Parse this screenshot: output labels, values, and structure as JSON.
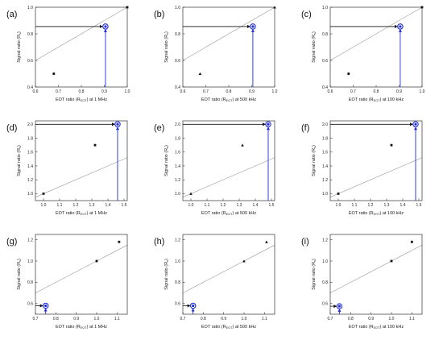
{
  "colors": {
    "highlight": "#1f2bd6",
    "arrow": "#111111",
    "points": "#111111",
    "diagonal": "#9a9a9a",
    "axes": "#333333"
  },
  "chart_data": [
    {
      "type": "scatter",
      "panel_label": "(a)",
      "marker": "square",
      "xlabel": {
        "pre": "EOT ratio (R",
        "sub": "EOT",
        "post": ") at 1 MHz"
      },
      "ylabel": {
        "pre": "Signal ratio (R",
        "sub": "s",
        "post": ")"
      },
      "xlim": [
        0.6,
        1.0
      ],
      "ylim": [
        0.4,
        1.0
      ],
      "xticks": [
        "0.6",
        "0.7",
        "0.8",
        "0.9",
        "1.0"
      ],
      "yticks": [
        "0.4",
        "0.6",
        "0.8",
        "1.0"
      ],
      "points": [
        [
          0.68,
          0.5
        ],
        [
          1.0,
          1.0
        ]
      ],
      "highlight": [
        0.905,
        0.855
      ],
      "diagonal": true
    },
    {
      "type": "scatter",
      "panel_label": "(b)",
      "marker": "triangle",
      "xlabel": {
        "pre": "EOT ratio (R",
        "sub": "EOT",
        "post": ") at 500 kHz"
      },
      "ylabel": {
        "pre": "Signal ratio (R",
        "sub": "s",
        "post": ")"
      },
      "xlim": [
        0.6,
        1.0
      ],
      "ylim": [
        0.4,
        1.0
      ],
      "xticks": [
        "0.6",
        "0.7",
        "0.8",
        "0.9",
        "1.0"
      ],
      "yticks": [
        "0.4",
        "0.6",
        "0.8",
        "1.0"
      ],
      "points": [
        [
          0.675,
          0.5
        ],
        [
          1.0,
          1.0
        ]
      ],
      "highlight": [
        0.905,
        0.855
      ],
      "diagonal": true
    },
    {
      "type": "scatter",
      "panel_label": "(c)",
      "marker": "square",
      "xlabel": {
        "pre": "EOT ratio (R",
        "sub": "EOT",
        "post": ") at 100 kHz"
      },
      "ylabel": {
        "pre": "Signal ratio (R",
        "sub": "s",
        "post": ")"
      },
      "xlim": [
        0.6,
        1.0
      ],
      "ylim": [
        0.4,
        1.0
      ],
      "xticks": [
        "0.6",
        "0.7",
        "0.8",
        "0.9",
        "1.0"
      ],
      "yticks": [
        "0.4",
        "0.6",
        "0.8",
        "1.0"
      ],
      "points": [
        [
          0.68,
          0.5
        ],
        [
          1.0,
          1.0
        ]
      ],
      "highlight": [
        0.905,
        0.855
      ],
      "diagonal": true
    },
    {
      "type": "scatter",
      "panel_label": "(d)",
      "marker": "square",
      "xlabel": {
        "pre": "EOT ratio (R",
        "sub": "EOT",
        "post": ") at 1 MHz"
      },
      "ylabel": {
        "pre": "Signal ratio (R",
        "sub": "s",
        "post": ")"
      },
      "xlim": [
        0.95,
        1.52
      ],
      "ylim": [
        0.9,
        2.05
      ],
      "xticks": [
        "1.0",
        "1.1",
        "1.2",
        "1.3",
        "1.4",
        "1.5"
      ],
      "yticks": [
        "1.0",
        "1.2",
        "1.4",
        "1.6",
        "1.8",
        "2.0"
      ],
      "points": [
        [
          1.0,
          1.0
        ],
        [
          1.32,
          1.7
        ]
      ],
      "highlight": [
        1.46,
        2.0
      ],
      "diagonal": true
    },
    {
      "type": "scatter",
      "panel_label": "(e)",
      "marker": "triangle",
      "xlabel": {
        "pre": "EOT ratio (R",
        "sub": "EOT",
        "post": ") at 500 kHz"
      },
      "ylabel": {
        "pre": "Signal ratio (R",
        "sub": "s",
        "post": ")"
      },
      "xlim": [
        0.95,
        1.52
      ],
      "ylim": [
        0.9,
        2.05
      ],
      "xticks": [
        "1.0",
        "1.1",
        "1.2",
        "1.3",
        "1.4",
        "1.5"
      ],
      "yticks": [
        "1.0",
        "1.2",
        "1.4",
        "1.6",
        "1.8",
        "2.0"
      ],
      "points": [
        [
          1.0,
          1.0
        ],
        [
          1.32,
          1.7
        ]
      ],
      "highlight": [
        1.48,
        2.0
      ],
      "diagonal": true
    },
    {
      "type": "scatter",
      "panel_label": "(f)",
      "marker": "square",
      "xlabel": {
        "pre": "EOT ratio (R",
        "sub": "EOT",
        "post": ") at 100 kHz"
      },
      "ylabel": {
        "pre": "Signal ratio (R",
        "sub": "s",
        "post": ")"
      },
      "xlim": [
        0.95,
        1.52
      ],
      "ylim": [
        0.9,
        2.05
      ],
      "xticks": [
        "1.0",
        "1.1",
        "1.2",
        "1.3",
        "1.4",
        "1.5"
      ],
      "yticks": [
        "1.0",
        "1.2",
        "1.4",
        "1.6",
        "1.8",
        "2.0"
      ],
      "points": [
        [
          1.0,
          1.0
        ],
        [
          1.33,
          1.7
        ]
      ],
      "highlight": [
        1.48,
        2.0
      ],
      "diagonal": true
    },
    {
      "type": "scatter",
      "panel_label": "(g)",
      "marker": "square",
      "xlabel": {
        "pre": "EOT ratio (R",
        "sub": "EOT",
        "post": ") at 1 MHz"
      },
      "ylabel": {
        "pre": "Signal ratio (R",
        "sub": "s",
        "post": ")"
      },
      "xlim": [
        0.7,
        1.15
      ],
      "ylim": [
        0.5,
        1.25
      ],
      "xticks": [
        "0.7",
        "0.8",
        "0.9",
        "1.0",
        "1.1"
      ],
      "yticks": [
        "0.6",
        "0.8",
        "1.0",
        "1.2"
      ],
      "points": [
        [
          1.0,
          1.0
        ],
        [
          1.11,
          1.18
        ]
      ],
      "highlight": [
        0.75,
        0.58
      ],
      "diagonal": true
    },
    {
      "type": "scatter",
      "panel_label": "(h)",
      "marker": "triangle",
      "xlabel": {
        "pre": "EOT ratio (R",
        "sub": "EOT",
        "post": ") at 500 kHz"
      },
      "ylabel": {
        "pre": "Signal ratio (R",
        "sub": "s",
        "post": ")"
      },
      "xlim": [
        0.7,
        1.15
      ],
      "ylim": [
        0.5,
        1.25
      ],
      "xticks": [
        "0.7",
        "0.8",
        "0.9",
        "1.0",
        "1.1"
      ],
      "yticks": [
        "0.6",
        "0.8",
        "1.0",
        "1.2"
      ],
      "points": [
        [
          1.0,
          1.0
        ],
        [
          1.11,
          1.18
        ]
      ],
      "highlight": [
        0.75,
        0.58
      ],
      "diagonal": true
    },
    {
      "type": "scatter",
      "panel_label": "(i)",
      "marker": "square",
      "xlabel": {
        "pre": "EOT ratio (R",
        "sub": "EOT",
        "post": ") at 100 kHz"
      },
      "ylabel": {
        "pre": "Signal ratio (R",
        "sub": "s",
        "post": ")"
      },
      "xlim": [
        0.7,
        1.15
      ],
      "ylim": [
        0.5,
        1.25
      ],
      "xticks": [
        "0.7",
        "0.8",
        "0.9",
        "1.0",
        "1.1"
      ],
      "yticks": [
        "0.6",
        "0.8",
        "1.0",
        "1.2"
      ],
      "points": [
        [
          1.0,
          1.0
        ],
        [
          1.1,
          1.18
        ]
      ],
      "highlight": [
        0.745,
        0.575
      ],
      "diagonal": true
    }
  ]
}
